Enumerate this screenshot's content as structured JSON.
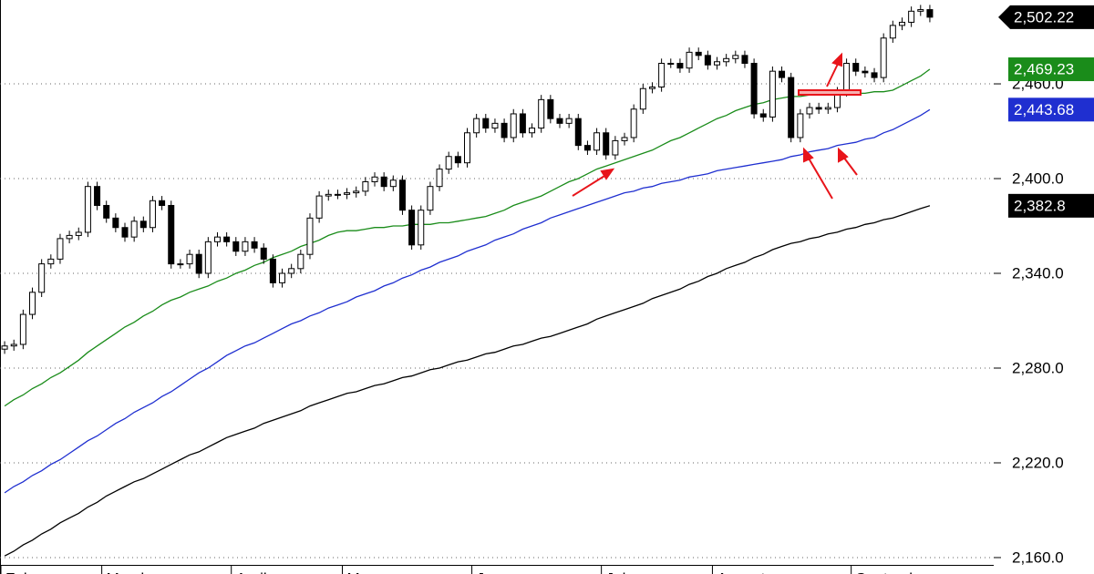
{
  "chart_data": {
    "type": "candlestick",
    "categories": [
      "February",
      null,
      null,
      null,
      null,
      null,
      null,
      null,
      null,
      null,
      null,
      "March",
      null,
      null,
      null,
      null,
      null,
      null,
      null,
      null,
      null,
      null,
      null,
      null,
      null,
      "April",
      null,
      null,
      null,
      null,
      null,
      null,
      null,
      null,
      null,
      null,
      null,
      "May",
      null,
      null,
      null,
      null,
      null,
      null,
      null,
      null,
      null,
      null,
      null,
      null,
      null,
      "June",
      null,
      null,
      null,
      null,
      null,
      null,
      null,
      null,
      null,
      null,
      null,
      null,
      null,
      "July",
      null,
      null,
      null,
      null,
      null,
      null,
      null,
      null,
      null,
      null,
      null,
      "August",
      null,
      null,
      null,
      null,
      null,
      null,
      null,
      null,
      null,
      null,
      null,
      null,
      null,
      null,
      "September",
      null,
      null,
      null,
      null,
      null,
      null,
      null,
      null
    ],
    "open": [
      2292,
      2294,
      2295,
      2314,
      2328,
      2346,
      2349,
      2362,
      2364,
      2366,
      2395,
      2383,
      2375,
      2369,
      2363,
      2373,
      2369,
      2386,
      2383,
      2346,
      2346,
      2352,
      2340,
      2360,
      2363,
      2360,
      2354,
      2360,
      2356,
      2349,
      2334,
      2340,
      2343,
      2352,
      2375,
      2389,
      2390,
      2390,
      2391,
      2392,
      2398,
      2401,
      2395,
      2399,
      2380,
      2358,
      2380,
      2395,
      2406,
      2414,
      2410,
      2429,
      2438,
      2432,
      2435,
      2426,
      2441,
      2429,
      2432,
      2450,
      2438,
      2435,
      2438,
      2421,
      2418,
      2429,
      2415,
      2424,
      2426,
      2444,
      2457,
      2458,
      2473,
      2473,
      2470,
      2480,
      2478,
      2472,
      2474,
      2476,
      2478,
      2473,
      2441,
      2439,
      2468,
      2464,
      2426,
      2441,
      2445,
      2444,
      2445,
      2455,
      2473,
      2468,
      2467,
      2464,
      2489,
      2497,
      2499,
      2506,
      2507
    ],
    "high": [
      2297,
      2298,
      2317,
      2331,
      2349,
      2352,
      2365,
      2367,
      2369,
      2398,
      2398,
      2386,
      2378,
      2372,
      2376,
      2376,
      2389,
      2389,
      2386,
      2349,
      2355,
      2355,
      2363,
      2366,
      2366,
      2363,
      2363,
      2363,
      2359,
      2352,
      2343,
      2346,
      2355,
      2378,
      2392,
      2393,
      2393,
      2394,
      2395,
      2401,
      2404,
      2404,
      2402,
      2402,
      2383,
      2383,
      2398,
      2409,
      2417,
      2417,
      2432,
      2441,
      2441,
      2438,
      2438,
      2444,
      2444,
      2435,
      2453,
      2453,
      2441,
      2441,
      2441,
      2424,
      2432,
      2432,
      2427,
      2429,
      2447,
      2460,
      2461,
      2476,
      2476,
      2476,
      2483,
      2483,
      2481,
      2477,
      2479,
      2481,
      2481,
      2476,
      2444,
      2471,
      2471,
      2467,
      2444,
      2448,
      2448,
      2448,
      2458,
      2476,
      2476,
      2471,
      2470,
      2492,
      2500,
      2502,
      2509,
      2510,
      2510
    ],
    "low": [
      2289,
      2291,
      2292,
      2311,
      2325,
      2343,
      2346,
      2359,
      2361,
      2363,
      2380,
      2372,
      2366,
      2360,
      2360,
      2366,
      2366,
      2380,
      2343,
      2343,
      2343,
      2337,
      2337,
      2357,
      2357,
      2351,
      2351,
      2353,
      2346,
      2331,
      2331,
      2337,
      2340,
      2349,
      2372,
      2386,
      2387,
      2387,
      2388,
      2389,
      2395,
      2392,
      2392,
      2377,
      2355,
      2355,
      2377,
      2392,
      2403,
      2407,
      2407,
      2426,
      2429,
      2429,
      2423,
      2423,
      2426,
      2426,
      2429,
      2435,
      2432,
      2432,
      2418,
      2415,
      2415,
      2412,
      2412,
      2421,
      2423,
      2441,
      2454,
      2455,
      2470,
      2467,
      2467,
      2475,
      2469,
      2469,
      2471,
      2473,
      2470,
      2438,
      2436,
      2436,
      2461,
      2423,
      2423,
      2438,
      2441,
      2441,
      2442,
      2452,
      2465,
      2464,
      2461,
      2461,
      2486,
      2494,
      2496,
      2503,
      2499
    ],
    "close": [
      2294,
      2295,
      2314,
      2328,
      2346,
      2349,
      2362,
      2364,
      2366,
      2395,
      2383,
      2375,
      2369,
      2363,
      2373,
      2369,
      2386,
      2383,
      2346,
      2346,
      2352,
      2340,
      2360,
      2363,
      2360,
      2354,
      2360,
      2356,
      2349,
      2334,
      2340,
      2343,
      2352,
      2375,
      2389,
      2390,
      2390,
      2391,
      2392,
      2398,
      2401,
      2395,
      2399,
      2380,
      2358,
      2380,
      2395,
      2406,
      2414,
      2410,
      2429,
      2438,
      2432,
      2435,
      2426,
      2441,
      2429,
      2432,
      2450,
      2438,
      2435,
      2438,
      2421,
      2418,
      2429,
      2415,
      2424,
      2426,
      2444,
      2457,
      2458,
      2473,
      2473,
      2470,
      2480,
      2478,
      2472,
      2474,
      2476,
      2478,
      2473,
      2441,
      2439,
      2468,
      2464,
      2426,
      2441,
      2445,
      2444,
      2445,
      2455,
      2473,
      2468,
      2467,
      2464,
      2489,
      2497,
      2499,
      2506,
      2507,
      2502.22
    ],
    "last_label": "2,502.22",
    "series": [
      {
        "color": "#1a8c1a",
        "last_label": "2,469.23",
        "values": [
          2256,
          2260,
          2263,
          2267,
          2270,
          2274,
          2277,
          2281,
          2285,
          2290,
          2294,
          2298,
          2302,
          2306,
          2309,
          2313,
          2316,
          2320,
          2323,
          2325,
          2328,
          2330,
          2332,
          2335,
          2337,
          2340,
          2342,
          2345,
          2347,
          2350,
          2352,
          2354,
          2357,
          2359,
          2361,
          2364,
          2366,
          2367,
          2367,
          2368,
          2369,
          2369,
          2370,
          2370,
          2371,
          2371,
          2371,
          2372,
          2372,
          2373,
          2374,
          2375,
          2376,
          2378,
          2380,
          2383,
          2385,
          2387,
          2389,
          2392,
          2395,
          2398,
          2400,
          2403,
          2406,
          2408,
          2410,
          2412,
          2414,
          2416,
          2418,
          2421,
          2424,
          2426,
          2429,
          2432,
          2435,
          2438,
          2440,
          2443,
          2445,
          2447,
          2448,
          2450,
          2451,
          2452,
          2452,
          2453,
          2454,
          2454,
          2454,
          2454,
          2454,
          2454,
          2455,
          2455,
          2456,
          2459,
          2462,
          2465,
          2469.23
        ]
      },
      {
        "color": "#1f2fd0",
        "last_label": "2,443.68",
        "values": [
          2201,
          2205,
          2208,
          2212,
          2215,
          2219,
          2222,
          2226,
          2230,
          2234,
          2237,
          2241,
          2245,
          2248,
          2252,
          2255,
          2258,
          2262,
          2265,
          2269,
          2273,
          2277,
          2280,
          2284,
          2288,
          2291,
          2294,
          2296,
          2299,
          2302,
          2305,
          2308,
          2310,
          2313,
          2315,
          2318,
          2320,
          2322,
          2325,
          2327,
          2329,
          2332,
          2334,
          2337,
          2339,
          2342,
          2344,
          2347,
          2349,
          2351,
          2354,
          2356,
          2358,
          2361,
          2363,
          2365,
          2368,
          2370,
          2372,
          2375,
          2377,
          2379,
          2381,
          2383,
          2385,
          2387,
          2389,
          2391,
          2392,
          2394,
          2395,
          2397,
          2398,
          2399,
          2401,
          2402,
          2403,
          2405,
          2406,
          2407,
          2408,
          2409,
          2410,
          2411,
          2412,
          2414,
          2415,
          2417,
          2418,
          2419,
          2421,
          2422,
          2423,
          2425,
          2426,
          2429,
          2431,
          2434,
          2437,
          2440,
          2443.68
        ]
      },
      {
        "color": "#000000",
        "last_label": "2,382.8",
        "values": [
          2161,
          2164,
          2168,
          2171,
          2175,
          2178,
          2182,
          2185,
          2188,
          2192,
          2195,
          2199,
          2202,
          2205,
          2208,
          2210,
          2213,
          2216,
          2219,
          2222,
          2225,
          2227,
          2230,
          2233,
          2236,
          2238,
          2240,
          2242,
          2245,
          2247,
          2249,
          2251,
          2253,
          2256,
          2258,
          2260,
          2262,
          2264,
          2265,
          2267,
          2269,
          2270,
          2272,
          2274,
          2275,
          2277,
          2279,
          2280,
          2282,
          2284,
          2285,
          2287,
          2289,
          2290,
          2292,
          2294,
          2295,
          2297,
          2299,
          2300,
          2302,
          2304,
          2306,
          2308,
          2311,
          2313,
          2315,
          2317,
          2319,
          2321,
          2324,
          2326,
          2328,
          2330,
          2333,
          2335,
          2338,
          2340,
          2343,
          2345,
          2347,
          2350,
          2352,
          2355,
          2357,
          2359,
          2360,
          2362,
          2363,
          2365,
          2366,
          2368,
          2369,
          2371,
          2372,
          2374,
          2375,
          2377,
          2379,
          2381,
          2382.8
        ]
      }
    ],
    "ylim": [
      2149.6,
      2513.1
    ],
    "yticks": [
      {
        "value": 2160,
        "label": "2,160.0"
      },
      {
        "value": 2220,
        "label": "2,220.0"
      },
      {
        "value": 2280,
        "label": "2,280.0"
      },
      {
        "value": 2340,
        "label": "2,340.0"
      },
      {
        "value": 2400,
        "label": "2,400.0"
      },
      {
        "value": 2460,
        "label": "2,460.0"
      }
    ],
    "grid": true
  }
}
